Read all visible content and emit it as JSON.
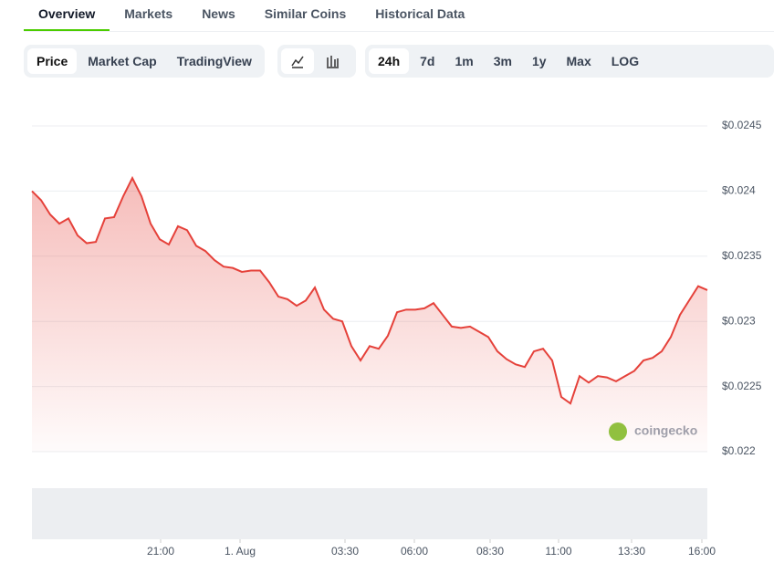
{
  "tabs": [
    "Overview",
    "Markets",
    "News",
    "Similar Coins",
    "Historical Data"
  ],
  "chart_modes": [
    "Price",
    "Market Cap",
    "TradingView"
  ],
  "ranges": [
    "24h",
    "7d",
    "1m",
    "3m",
    "1y",
    "Max",
    "LOG"
  ],
  "watermark": "coingecko",
  "chart_data": {
    "type": "area",
    "color": "#e5413a",
    "series": [
      {
        "name": "Price",
        "color": "#e5413a",
        "values": [
          0.024,
          0.02393,
          0.02382,
          0.02375,
          0.02379,
          0.02366,
          0.0236,
          0.02361,
          0.02379,
          0.0238,
          0.02396,
          0.0241,
          0.02396,
          0.02375,
          0.02363,
          0.02359,
          0.02373,
          0.0237,
          0.02358,
          0.02354,
          0.02347,
          0.02342,
          0.02341,
          0.02338,
          0.02339,
          0.02339,
          0.0233,
          0.02319,
          0.02317,
          0.02312,
          0.02316,
          0.02326,
          0.02309,
          0.02302,
          0.023,
          0.02281,
          0.0227,
          0.02281,
          0.02279,
          0.02289,
          0.02307,
          0.02309,
          0.02309,
          0.0231,
          0.02314,
          0.02305,
          0.02296,
          0.02295,
          0.02296,
          0.02292,
          0.02288,
          0.02277,
          0.02271,
          0.02267,
          0.02265,
          0.02277,
          0.02279,
          0.0227,
          0.02242,
          0.02237,
          0.02258,
          0.02253,
          0.02258,
          0.02257,
          0.02254,
          0.02258,
          0.02262,
          0.0227,
          0.02272,
          0.02277,
          0.02288,
          0.02305,
          0.02316,
          0.02327,
          0.02324
        ]
      }
    ],
    "ylim": [
      0.022,
      0.0245
    ],
    "yticks": [
      {
        "value": 0.0245,
        "label": "$0.0245"
      },
      {
        "value": 0.024,
        "label": "$0.024"
      },
      {
        "value": 0.0235,
        "label": "$0.0235"
      },
      {
        "value": 0.023,
        "label": "$0.023"
      },
      {
        "value": 0.0225,
        "label": "$0.0225"
      },
      {
        "value": 0.022,
        "label": "$0.022"
      }
    ],
    "xticks": [
      {
        "value": 14.1,
        "label": "21:00"
      },
      {
        "value": 22.8,
        "label": "1. Aug"
      },
      {
        "value": 34.3,
        "label": "03:30"
      },
      {
        "value": 41.9,
        "label": "06:00"
      },
      {
        "value": 50.2,
        "label": "08:30"
      },
      {
        "value": 57.7,
        "label": "11:00"
      },
      {
        "value": 65.7,
        "label": "13:30"
      },
      {
        "value": 73.4,
        "label": "16:00"
      }
    ],
    "grid": true
  }
}
